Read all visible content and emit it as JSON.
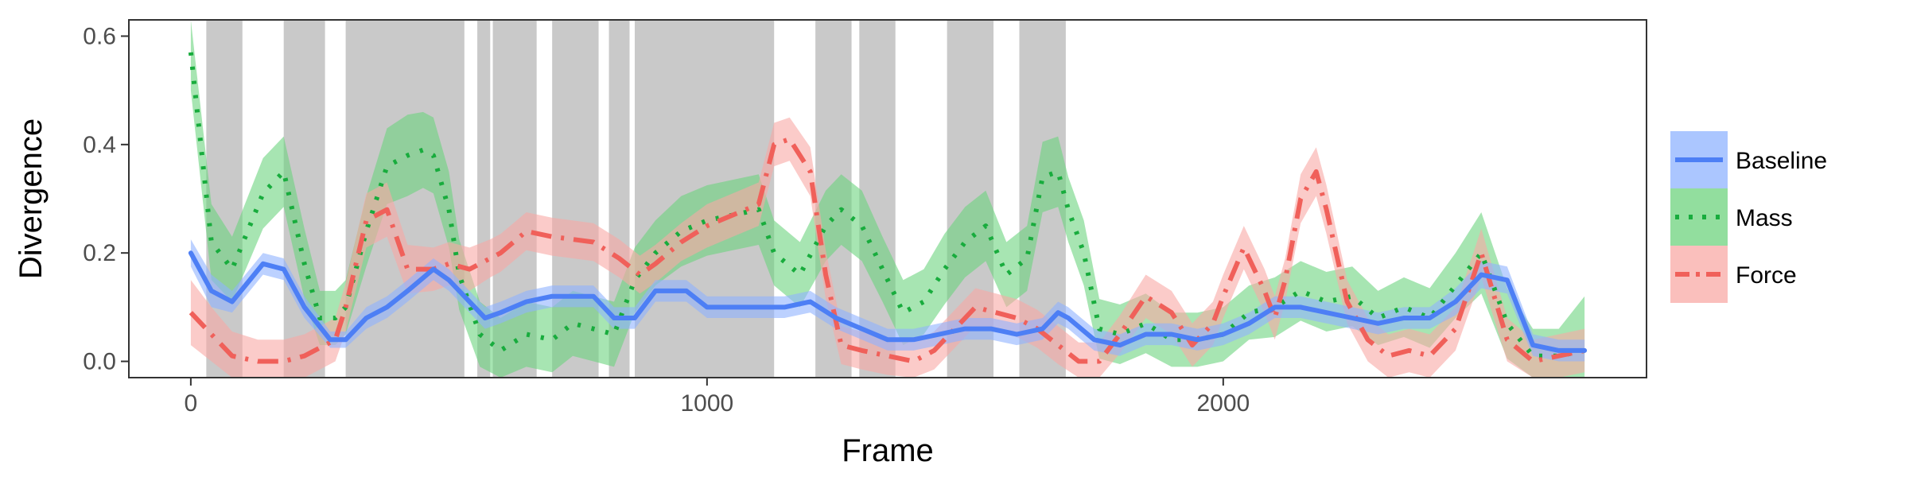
{
  "chart_data": {
    "type": "line",
    "title": "",
    "xlabel": "Frame",
    "ylabel": "Divergence",
    "xlim": [
      -120,
      2820
    ],
    "ylim": [
      -0.03,
      0.63
    ],
    "x_ticks": [
      0,
      1000,
      2000
    ],
    "x_tick_labels": [
      "0",
      "1000",
      "2000"
    ],
    "y_ticks": [
      0.0,
      0.2,
      0.4,
      0.6
    ],
    "y_tick_labels": [
      "0.0",
      "0.2",
      "0.4",
      "0.6"
    ],
    "grid": false,
    "legend_position": "right",
    "shaded_intervals": [
      [
        30,
        100
      ],
      [
        180,
        260
      ],
      [
        300,
        530
      ],
      [
        555,
        580
      ],
      [
        585,
        670
      ],
      [
        700,
        790
      ],
      [
        810,
        850
      ],
      [
        860,
        1130
      ],
      [
        1210,
        1280
      ],
      [
        1295,
        1365
      ],
      [
        1465,
        1555
      ],
      [
        1605,
        1695
      ]
    ],
    "series": [
      {
        "name": "Baseline",
        "color": "#4d7ff5",
        "band_color": "#8fb3ff",
        "dash": "solid",
        "x": [
          0,
          40,
          80,
          140,
          180,
          220,
          270,
          300,
          340,
          380,
          420,
          470,
          500,
          530,
          570,
          600,
          650,
          700,
          780,
          820,
          860,
          900,
          960,
          1000,
          1100,
          1150,
          1200,
          1250,
          1300,
          1350,
          1400,
          1450,
          1500,
          1550,
          1600,
          1650,
          1680,
          1700,
          1750,
          1800,
          1850,
          1900,
          1950,
          2000,
          2050,
          2100,
          2150,
          2200,
          2250,
          2300,
          2350,
          2400,
          2450,
          2500,
          2550,
          2600,
          2650,
          2700
        ],
        "y": [
          0.2,
          0.13,
          0.11,
          0.18,
          0.17,
          0.1,
          0.04,
          0.04,
          0.08,
          0.1,
          0.13,
          0.17,
          0.15,
          0.12,
          0.08,
          0.09,
          0.11,
          0.12,
          0.12,
          0.08,
          0.08,
          0.13,
          0.13,
          0.1,
          0.1,
          0.1,
          0.11,
          0.08,
          0.06,
          0.04,
          0.04,
          0.05,
          0.06,
          0.06,
          0.05,
          0.06,
          0.09,
          0.08,
          0.04,
          0.03,
          0.05,
          0.05,
          0.04,
          0.05,
          0.07,
          0.1,
          0.1,
          0.09,
          0.08,
          0.07,
          0.08,
          0.08,
          0.11,
          0.16,
          0.15,
          0.03,
          0.02,
          0.02
        ],
        "band": [
          0.025,
          0.03,
          0.02,
          0.02,
          0.02,
          0.02,
          0.015,
          0.015,
          0.02,
          0.02,
          0.02,
          0.02,
          0.02,
          0.02,
          0.02,
          0.02,
          0.02,
          0.02,
          0.02,
          0.02,
          0.02,
          0.02,
          0.02,
          0.02,
          0.02,
          0.02,
          0.02,
          0.02,
          0.02,
          0.02,
          0.02,
          0.02,
          0.02,
          0.02,
          0.02,
          0.02,
          0.02,
          0.02,
          0.02,
          0.02,
          0.02,
          0.02,
          0.02,
          0.02,
          0.02,
          0.02,
          0.02,
          0.02,
          0.02,
          0.02,
          0.02,
          0.02,
          0.025,
          0.025,
          0.025,
          0.02,
          0.02,
          0.02
        ]
      },
      {
        "name": "Mass",
        "color": "#18ac3d",
        "band_color": "#6dd37e",
        "dash": "dotted",
        "x": [
          0,
          40,
          80,
          140,
          180,
          220,
          250,
          280,
          300,
          340,
          380,
          420,
          450,
          470,
          500,
          520,
          560,
          600,
          650,
          700,
          740,
          780,
          820,
          860,
          900,
          950,
          1000,
          1050,
          1100,
          1130,
          1180,
          1230,
          1260,
          1300,
          1340,
          1380,
          1420,
          1460,
          1500,
          1540,
          1580,
          1620,
          1650,
          1680,
          1700,
          1730,
          1760,
          1800,
          1850,
          1900,
          1950,
          2000,
          2050,
          2100,
          2150,
          2200,
          2250,
          2300,
          2350,
          2400,
          2450,
          2500,
          2550,
          2600,
          2650,
          2700
        ],
        "y": [
          0.57,
          0.22,
          0.17,
          0.31,
          0.35,
          0.18,
          0.08,
          0.08,
          0.1,
          0.24,
          0.36,
          0.38,
          0.39,
          0.38,
          0.28,
          0.16,
          0.05,
          0.02,
          0.05,
          0.04,
          0.07,
          0.06,
          0.05,
          0.15,
          0.2,
          0.24,
          0.26,
          0.27,
          0.28,
          0.2,
          0.16,
          0.25,
          0.28,
          0.25,
          0.17,
          0.09,
          0.11,
          0.17,
          0.22,
          0.25,
          0.16,
          0.19,
          0.34,
          0.35,
          0.28,
          0.2,
          0.06,
          0.05,
          0.07,
          0.04,
          0.04,
          0.05,
          0.09,
          0.1,
          0.13,
          0.11,
          0.12,
          0.08,
          0.1,
          0.08,
          0.14,
          0.2,
          0.07,
          0.01,
          0.01,
          0.02
        ],
        "band": [
          0.07,
          0.07,
          0.06,
          0.065,
          0.065,
          0.065,
          0.05,
          0.05,
          0.05,
          0.065,
          0.07,
          0.075,
          0.07,
          0.07,
          0.07,
          0.065,
          0.06,
          0.06,
          0.06,
          0.06,
          0.06,
          0.06,
          0.06,
          0.06,
          0.06,
          0.065,
          0.065,
          0.065,
          0.065,
          0.06,
          0.06,
          0.065,
          0.065,
          0.065,
          0.06,
          0.06,
          0.06,
          0.065,
          0.065,
          0.065,
          0.06,
          0.06,
          0.065,
          0.065,
          0.06,
          0.06,
          0.055,
          0.055,
          0.055,
          0.05,
          0.05,
          0.05,
          0.05,
          0.055,
          0.055,
          0.055,
          0.055,
          0.05,
          0.055,
          0.055,
          0.06,
          0.075,
          0.065,
          0.05,
          0.05,
          0.1
        ]
      },
      {
        "name": "Force",
        "color": "#f0605a",
        "band_color": "#f8a9a5",
        "dash": "dashdot",
        "x": [
          0,
          40,
          80,
          130,
          180,
          220,
          260,
          280,
          300,
          340,
          380,
          420,
          470,
          500,
          540,
          580,
          600,
          650,
          700,
          780,
          830,
          870,
          900,
          950,
          1000,
          1050,
          1100,
          1130,
          1160,
          1200,
          1230,
          1260,
          1300,
          1350,
          1400,
          1440,
          1480,
          1520,
          1560,
          1600,
          1640,
          1680,
          1720,
          1760,
          1800,
          1850,
          1900,
          1940,
          1980,
          2000,
          2040,
          2080,
          2100,
          2120,
          2150,
          2180,
          2200,
          2240,
          2280,
          2320,
          2360,
          2400,
          2450,
          2500,
          2550,
          2600,
          2650,
          2700
        ],
        "y": [
          0.09,
          0.05,
          0.01,
          0.0,
          0.0,
          0.01,
          0.03,
          0.04,
          0.1,
          0.26,
          0.28,
          0.17,
          0.17,
          0.18,
          0.17,
          0.19,
          0.2,
          0.24,
          0.23,
          0.22,
          0.19,
          0.16,
          0.18,
          0.22,
          0.25,
          0.27,
          0.29,
          0.4,
          0.41,
          0.35,
          0.16,
          0.03,
          0.02,
          0.01,
          0.0,
          0.02,
          0.06,
          0.1,
          0.09,
          0.08,
          0.06,
          0.03,
          0.0,
          0.0,
          0.05,
          0.12,
          0.09,
          0.03,
          0.07,
          0.12,
          0.21,
          0.13,
          0.08,
          0.15,
          0.3,
          0.35,
          0.28,
          0.11,
          0.04,
          0.01,
          0.02,
          0.01,
          0.06,
          0.2,
          0.04,
          0.0,
          0.01,
          0.02
        ],
        "band": [
          0.06,
          0.05,
          0.045,
          0.04,
          0.04,
          0.04,
          0.04,
          0.04,
          0.045,
          0.05,
          0.05,
          0.045,
          0.04,
          0.04,
          0.04,
          0.035,
          0.035,
          0.035,
          0.035,
          0.035,
          0.035,
          0.035,
          0.035,
          0.035,
          0.04,
          0.04,
          0.04,
          0.04,
          0.04,
          0.045,
          0.045,
          0.035,
          0.035,
          0.035,
          0.035,
          0.035,
          0.035,
          0.035,
          0.035,
          0.035,
          0.035,
          0.035,
          0.035,
          0.035,
          0.035,
          0.04,
          0.04,
          0.04,
          0.04,
          0.04,
          0.04,
          0.04,
          0.04,
          0.04,
          0.045,
          0.045,
          0.045,
          0.04,
          0.04,
          0.04,
          0.04,
          0.04,
          0.04,
          0.045,
          0.04,
          0.04,
          0.04,
          0.04
        ]
      }
    ]
  }
}
